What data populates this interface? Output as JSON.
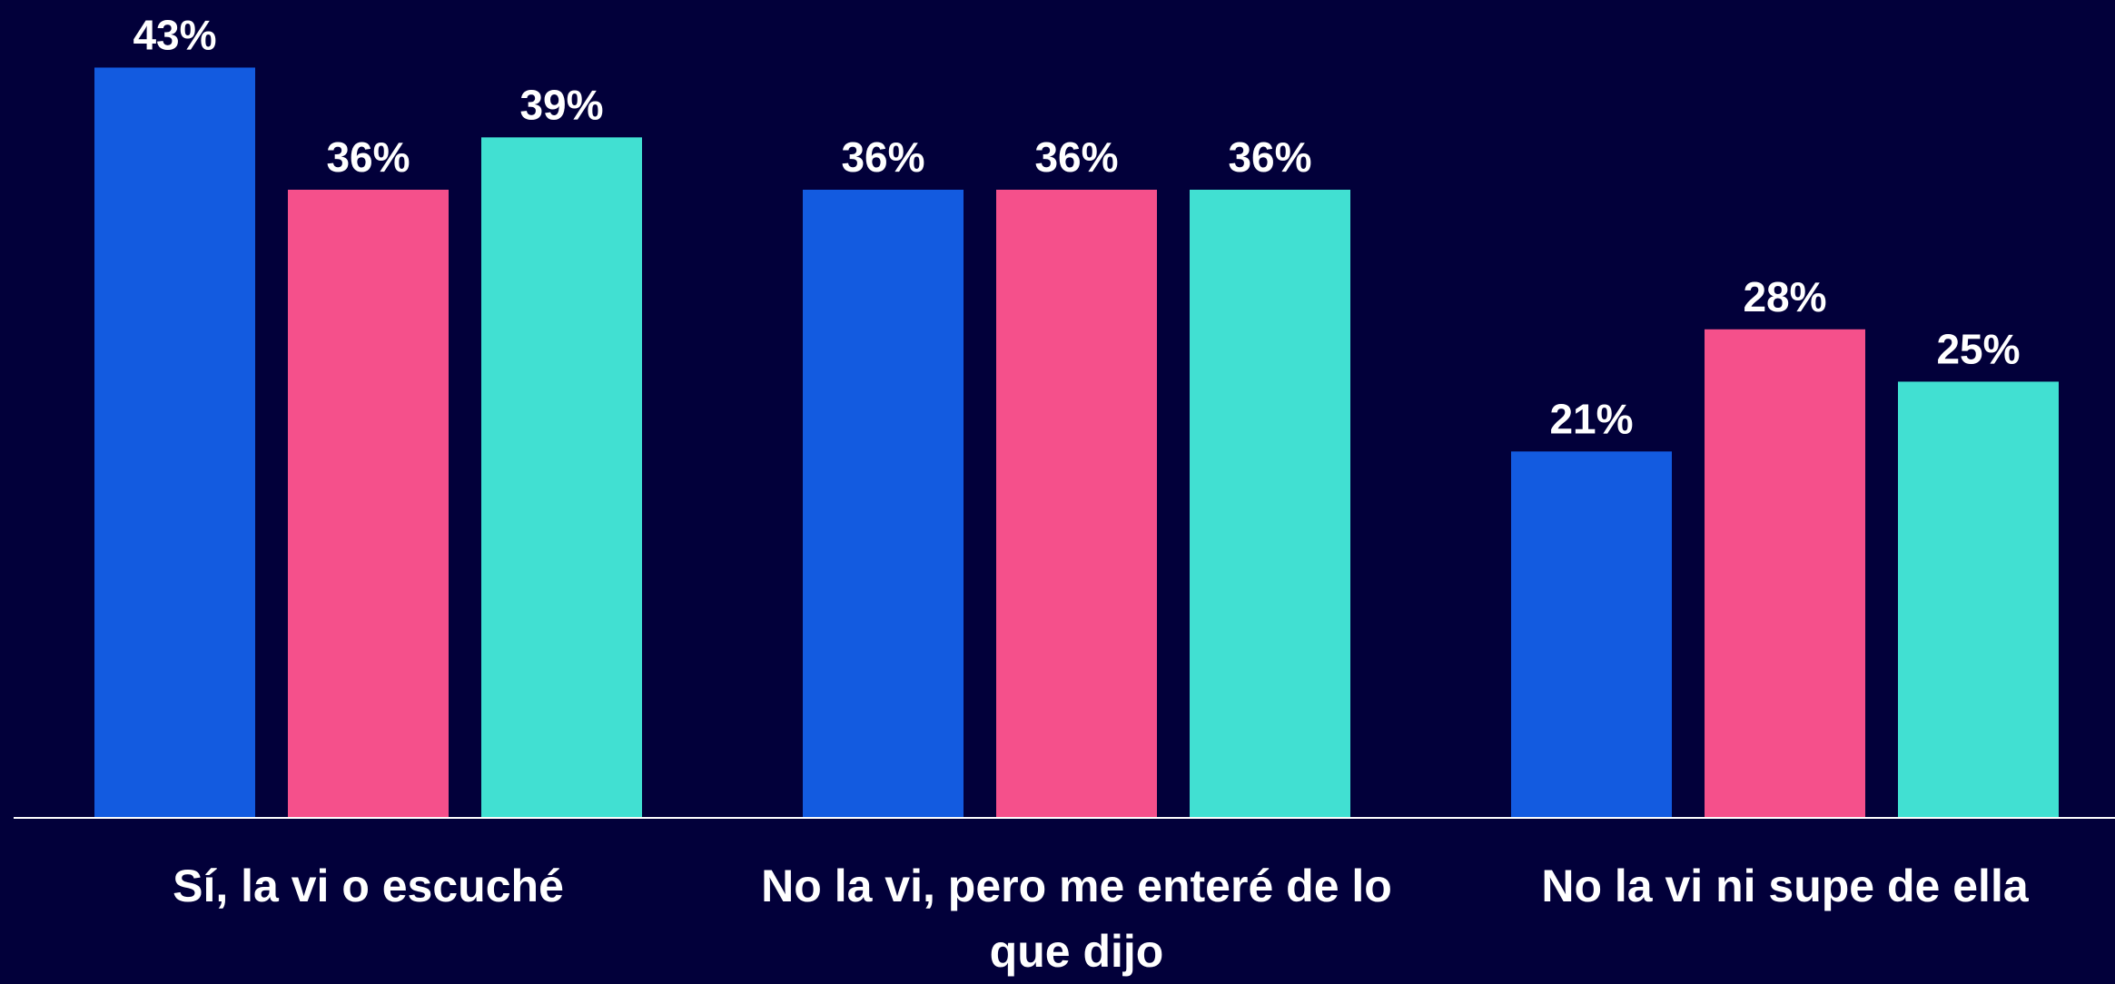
{
  "chart_data": {
    "type": "bar",
    "categories": [
      "Sí, la vi o escuché",
      "No la vi, pero me enteré de lo que dijo",
      "No la vi ni supe de ella"
    ],
    "series": [
      {
        "color": "#135be0",
        "values": [
          43,
          36,
          21
        ],
        "value_labels": [
          "43%",
          "36%",
          "21%"
        ]
      },
      {
        "color": "#f5508b",
        "values": [
          36,
          36,
          28
        ],
        "value_labels": [
          "36%",
          "36%",
          "28%"
        ]
      },
      {
        "color": "#41e0d2",
        "values": [
          39,
          36,
          25
        ],
        "value_labels": [
          "39%",
          "36%",
          "25%"
        ]
      }
    ],
    "ylim": [
      0,
      45
    ]
  }
}
